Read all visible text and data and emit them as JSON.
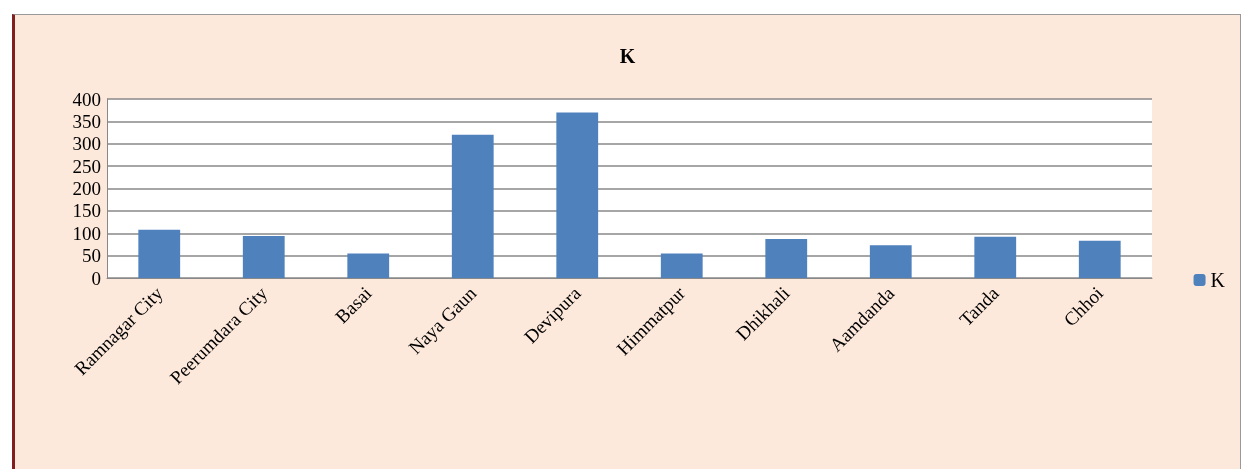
{
  "chart_data": {
    "type": "bar",
    "title": "K",
    "categories": [
      "Ramnagar City",
      "Peerumdara City",
      "Basai",
      "Naya Gaun",
      "Devipura",
      "Himmatpur",
      "Dhikhali",
      "Aamdanda",
      "Tanda",
      "Chhoi"
    ],
    "series": [
      {
        "name": "K",
        "color": "#4f81bd",
        "values": [
          108,
          94,
          55,
          320,
          370,
          55,
          87,
          73,
          92,
          83
        ]
      }
    ],
    "ylim": [
      0,
      400
    ],
    "yticks": [
      0,
      50,
      100,
      150,
      200,
      250,
      300,
      350,
      400
    ],
    "grid": "y",
    "legend": "right"
  }
}
